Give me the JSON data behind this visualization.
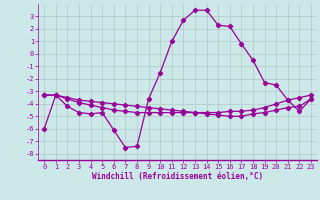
{
  "background_color": "#cce8e8",
  "grid_color": "#b0c8c8",
  "line_color": "#990099",
  "xlabel": "Windchill (Refroidissement éolien,°C)",
  "xlim": [
    -0.5,
    23.5
  ],
  "ylim": [
    -8.5,
    4.0
  ],
  "xticks": [
    0,
    1,
    2,
    3,
    4,
    5,
    6,
    7,
    8,
    9,
    10,
    11,
    12,
    13,
    14,
    15,
    16,
    17,
    18,
    19,
    20,
    21,
    22,
    23
  ],
  "yticks": [
    3,
    2,
    1,
    0,
    -1,
    -2,
    -3,
    -4,
    -5,
    -6,
    -7,
    -8
  ],
  "series1_x": [
    0,
    1,
    2,
    3,
    4,
    5,
    6,
    7,
    8,
    9,
    10,
    11,
    12,
    13,
    14,
    15,
    16,
    17,
    18,
    19,
    20,
    21,
    22,
    23
  ],
  "series1_y": [
    -6.0,
    -3.3,
    -4.2,
    -4.7,
    -4.8,
    -4.7,
    -6.1,
    -7.5,
    -7.4,
    -3.6,
    -1.5,
    1.0,
    2.7,
    3.5,
    3.5,
    2.3,
    2.2,
    0.8,
    -0.5,
    -2.3,
    -2.5,
    -3.7,
    -4.6,
    -3.6
  ],
  "series2_x": [
    0,
    1,
    2,
    3,
    4,
    5,
    6,
    7,
    8,
    9,
    10,
    11,
    12,
    13,
    14,
    15,
    16,
    17,
    18,
    19,
    20,
    21,
    22,
    23
  ],
  "series2_y": [
    -3.3,
    -3.3,
    -3.5,
    -3.7,
    -3.8,
    -3.9,
    -4.0,
    -4.1,
    -4.2,
    -4.3,
    -4.4,
    -4.5,
    -4.6,
    -4.7,
    -4.8,
    -4.9,
    -5.0,
    -5.0,
    -4.8,
    -4.7,
    -4.5,
    -4.3,
    -4.2,
    -3.6
  ],
  "series3_x": [
    0,
    1,
    2,
    3,
    4,
    5,
    6,
    7,
    8,
    9,
    10,
    11,
    12,
    13,
    14,
    15,
    16,
    17,
    18,
    19,
    20,
    21,
    22,
    23
  ],
  "series3_y": [
    -3.3,
    -3.3,
    -3.6,
    -3.9,
    -4.1,
    -4.3,
    -4.5,
    -4.6,
    -4.7,
    -4.7,
    -4.7,
    -4.7,
    -4.7,
    -4.7,
    -4.7,
    -4.7,
    -4.6,
    -4.6,
    -4.5,
    -4.3,
    -4.0,
    -3.7,
    -3.5,
    -3.3
  ],
  "tick_fontsize": 5.0,
  "xlabel_fontsize": 5.5,
  "marker_size": 2.2,
  "line_width": 0.9
}
